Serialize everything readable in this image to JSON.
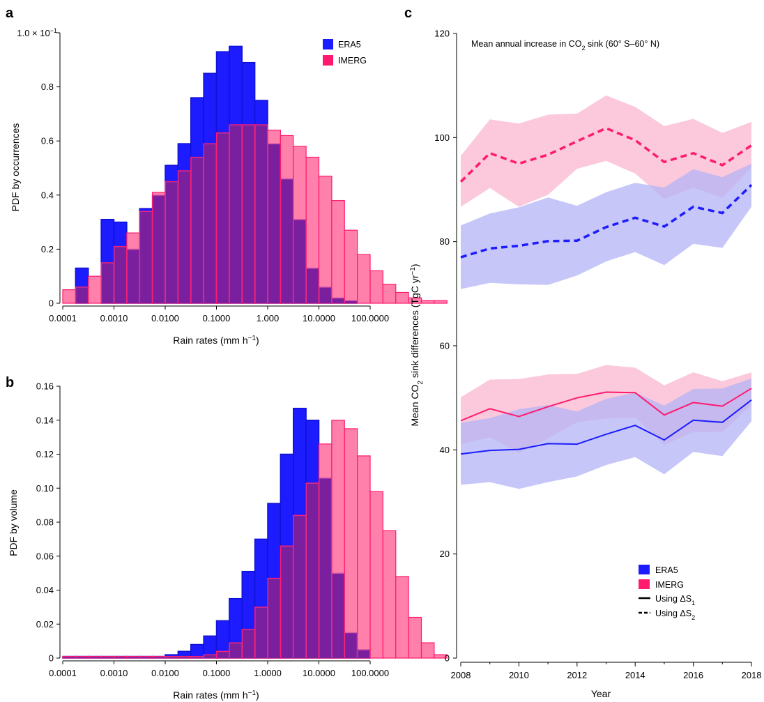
{
  "colors": {
    "era5": "#1c1cff",
    "era5_edge": "#1010d6",
    "imerg": "#ff1a6e",
    "imerg_light": "#ff6a9c",
    "overlap": "#7a1f9e",
    "era5_band": "#b3b3f7",
    "imerg_band": "#f9b7cf"
  },
  "chart_data": [
    {
      "panel": "a",
      "type": "bar",
      "xlabel": "Rain rates (mm h",
      "xlabel_sup": "−1",
      "xlabel_end": ")",
      "ylabel": "PDF by occurrences",
      "y_top_label_prefix": "1.0 × 10",
      "y_top_label_sup": "−1",
      "x_log_range": [
        -4,
        2
      ],
      "ylim": [
        0,
        1.0
      ],
      "bins_per_decade": 4,
      "x_ticks": [
        "0.0001",
        "0.0010",
        "0.0100",
        "0.1000",
        "1.000",
        "10.0000",
        "100.0000"
      ],
      "y_ticks": [
        {
          "value": 0,
          "label": "0"
        },
        {
          "value": 0.2,
          "label": "0.2"
        },
        {
          "value": 0.4,
          "label": "0.4"
        },
        {
          "value": 0.6,
          "label": "0.6"
        },
        {
          "value": 0.8,
          "label": "0.8"
        },
        {
          "value": 1.0,
          "label": ""
        }
      ],
      "legend": [
        "ERA5",
        "IMERG"
      ],
      "series": [
        {
          "name": "ERA5",
          "values": [
            0.0,
            0.13,
            0.0,
            0.31,
            0.3,
            0.2,
            0.35,
            0.4,
            0.51,
            0.59,
            0.76,
            0.85,
            0.93,
            0.95,
            0.89,
            0.75,
            0.59,
            0.46,
            0.31,
            0.13,
            0.06,
            0.02,
            0.01,
            0.0
          ]
        },
        {
          "name": "IMERG",
          "values": [
            0.05,
            0.06,
            0.1,
            0.15,
            0.21,
            0.26,
            0.34,
            0.41,
            0.45,
            0.49,
            0.54,
            0.59,
            0.63,
            0.66,
            0.66,
            0.66,
            0.64,
            0.62,
            0.58,
            0.54,
            0.47,
            0.38,
            0.27,
            0.18,
            0.12,
            0.07,
            0.04,
            0.02,
            0.01,
            0.01
          ]
        }
      ]
    },
    {
      "panel": "b",
      "type": "bar",
      "xlabel": "Rain rates (mm h",
      "xlabel_sup": "−1",
      "xlabel_end": ")",
      "ylabel": "PDF by volume",
      "x_log_range": [
        -4,
        2
      ],
      "ylim": [
        0,
        0.16
      ],
      "bins_per_decade": 4,
      "x_ticks": [
        "0.0001",
        "0.0010",
        "0.0100",
        "0.1000",
        "1.0000",
        "10.0000",
        "100.0000"
      ],
      "y_ticks": [
        {
          "value": 0,
          "label": "0"
        },
        {
          "value": 0.02,
          "label": "0.02"
        },
        {
          "value": 0.04,
          "label": "0.04"
        },
        {
          "value": 0.06,
          "label": "0.06"
        },
        {
          "value": 0.08,
          "label": "0.08"
        },
        {
          "value": 0.1,
          "label": "0.10"
        },
        {
          "value": 0.12,
          "label": "0.12"
        },
        {
          "value": 0.14,
          "label": "0.14"
        },
        {
          "value": 0.16,
          "label": "0.16"
        }
      ],
      "series": [
        {
          "name": "ERA5",
          "values": [
            0.001,
            0.001,
            0.001,
            0.001,
            0.001,
            0.001,
            0.001,
            0.001,
            0.002,
            0.004,
            0.008,
            0.013,
            0.022,
            0.035,
            0.051,
            0.07,
            0.091,
            0.12,
            0.147,
            0.14,
            0.106,
            0.05,
            0.015,
            0.005
          ]
        },
        {
          "name": "IMERG",
          "values": [
            0.001,
            0.001,
            0.001,
            0.001,
            0.001,
            0.001,
            0.001,
            0.001,
            0.001,
            0.001,
            0.001,
            0.002,
            0.004,
            0.009,
            0.017,
            0.03,
            0.047,
            0.066,
            0.084,
            0.103,
            0.126,
            0.14,
            0.135,
            0.119,
            0.098,
            0.075,
            0.048,
            0.024,
            0.009,
            0.002
          ]
        }
      ]
    },
    {
      "panel": "c",
      "type": "line",
      "title": "Mean annual increase in CO",
      "title_sub": "2",
      "title_end": " sink (60° S–60° N)",
      "xlabel": "Year",
      "ylabel_parts": [
        "Mean CO",
        "2",
        " sink differences (TgC yr",
        "−1",
        ")"
      ],
      "xlim": [
        2008,
        2018
      ],
      "ylim": [
        0,
        120
      ],
      "x_ticks": [
        2008,
        2010,
        2012,
        2014,
        2016,
        2018
      ],
      "y_ticks": [
        0,
        20,
        40,
        60,
        80,
        100,
        120
      ],
      "x": [
        2008,
        2009,
        2010,
        2011,
        2012,
        2013,
        2014,
        2015,
        2016,
        2017,
        2018
      ],
      "series": [
        {
          "name": "IMERG",
          "style": "dashed",
          "values": [
            91.5,
            97.0,
            95.0,
            96.7,
            99.3,
            101.8,
            99.5,
            95.3,
            97.0,
            94.7,
            98.5
          ],
          "upper": [
            96.5,
            103.5,
            102.7,
            104.4,
            104.6,
            108.1,
            105.9,
            102.2,
            103.6,
            100.9,
            103.0
          ],
          "lower": [
            86.7,
            90.3,
            86.7,
            89.0,
            94.0,
            95.5,
            93.1,
            88.2,
            90.4,
            88.4,
            94.2
          ]
        },
        {
          "name": "ERA5",
          "style": "dashed",
          "values": [
            77.0,
            78.7,
            79.2,
            80.1,
            80.2,
            82.8,
            84.6,
            82.9,
            86.7,
            85.5,
            90.9
          ],
          "upper": [
            83.1,
            85.4,
            86.6,
            88.5,
            86.9,
            89.5,
            91.3,
            90.4,
            93.9,
            92.4,
            95.0
          ],
          "lower": [
            70.9,
            72.1,
            71.8,
            71.7,
            73.5,
            76.2,
            78.0,
            75.5,
            79.6,
            78.8,
            86.7
          ]
        },
        {
          "name": "IMERG",
          "style": "solid",
          "values": [
            45.6,
            47.9,
            46.4,
            48.3,
            50.0,
            51.1,
            51.0,
            46.7,
            49.1,
            48.4,
            51.8
          ],
          "upper": [
            50.1,
            53.5,
            53.6,
            54.5,
            54.6,
            56.3,
            55.8,
            52.4,
            54.9,
            53.2,
            54.9
          ],
          "lower": [
            41.1,
            42.4,
            39.5,
            42.2,
            45.3,
            46.0,
            46.2,
            41.0,
            43.4,
            43.5,
            48.6
          ]
        },
        {
          "name": "ERA5",
          "style": "solid",
          "values": [
            39.2,
            39.9,
            40.1,
            41.2,
            41.1,
            43.0,
            44.7,
            41.9,
            45.7,
            45.3,
            49.6
          ],
          "upper": [
            45.2,
            46.1,
            47.8,
            48.6,
            47.4,
            49.8,
            51.0,
            48.5,
            51.7,
            51.8,
            53.7
          ],
          "lower": [
            33.3,
            33.8,
            32.5,
            33.8,
            34.9,
            37.1,
            38.6,
            35.3,
            39.6,
            38.8,
            45.5
          ]
        }
      ],
      "legend": {
        "era5": "ERA5",
        "imerg": "IMERG",
        "solid_prefix": "Using ΔS",
        "solid_sub": "1",
        "dashed_prefix": "Using ΔS",
        "dashed_sub": "2"
      }
    }
  ]
}
